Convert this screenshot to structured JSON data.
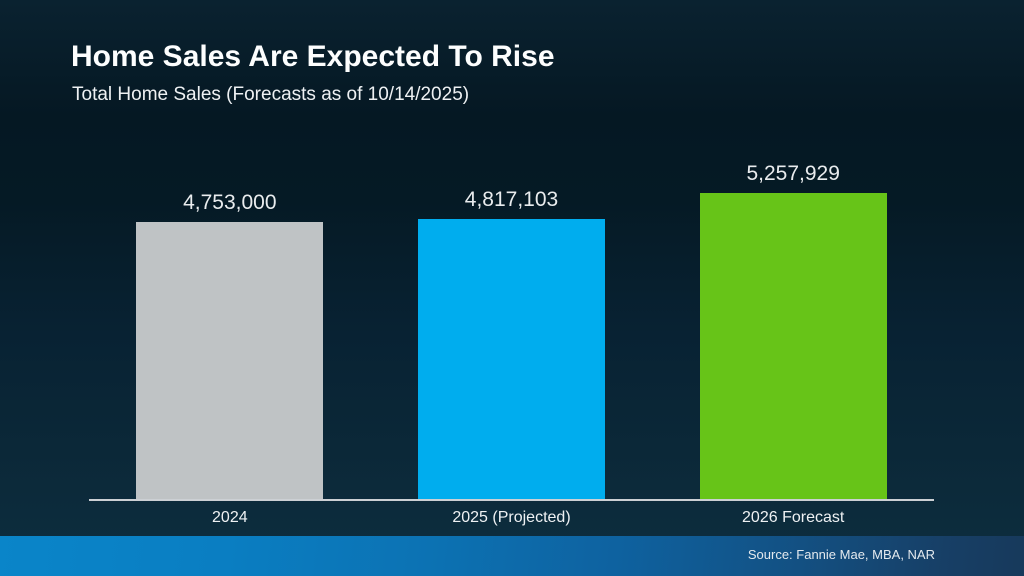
{
  "slide": {
    "title": "Home Sales Are Expected To Rise",
    "subtitle": "Total Home Sales (Forecasts as of 10/14/2025)",
    "source": "Source: Fannie Mae, MBA, NAR"
  },
  "chart_data": {
    "type": "bar",
    "title": "Home Sales Are Expected To Rise",
    "subtitle": "Total Home Sales (Forecasts as of 10/14/2025)",
    "categories": [
      "2024",
      "2025 (Projected)",
      "2026 Forecast"
    ],
    "values": [
      4753000,
      4817103,
      5257929
    ],
    "value_labels": [
      "4,753,000",
      "4,817,103",
      "5,257,929"
    ],
    "bar_colors": [
      "#bfc3c5",
      "#00adee",
      "#67c418"
    ],
    "ylim": [
      0,
      5257929
    ],
    "xlabel": "",
    "ylabel": "",
    "grid": false,
    "legend": false,
    "annotations": [
      "Source: Fannie Mae, MBA, NAR"
    ]
  },
  "colors": {
    "background_top": "#0a2230",
    "background_bottom": "#0d2d3e",
    "axis_line": "#ccd0d4",
    "strip_left": "#0a85c9",
    "strip_right": "#17395b",
    "text": "#eef1f3"
  }
}
